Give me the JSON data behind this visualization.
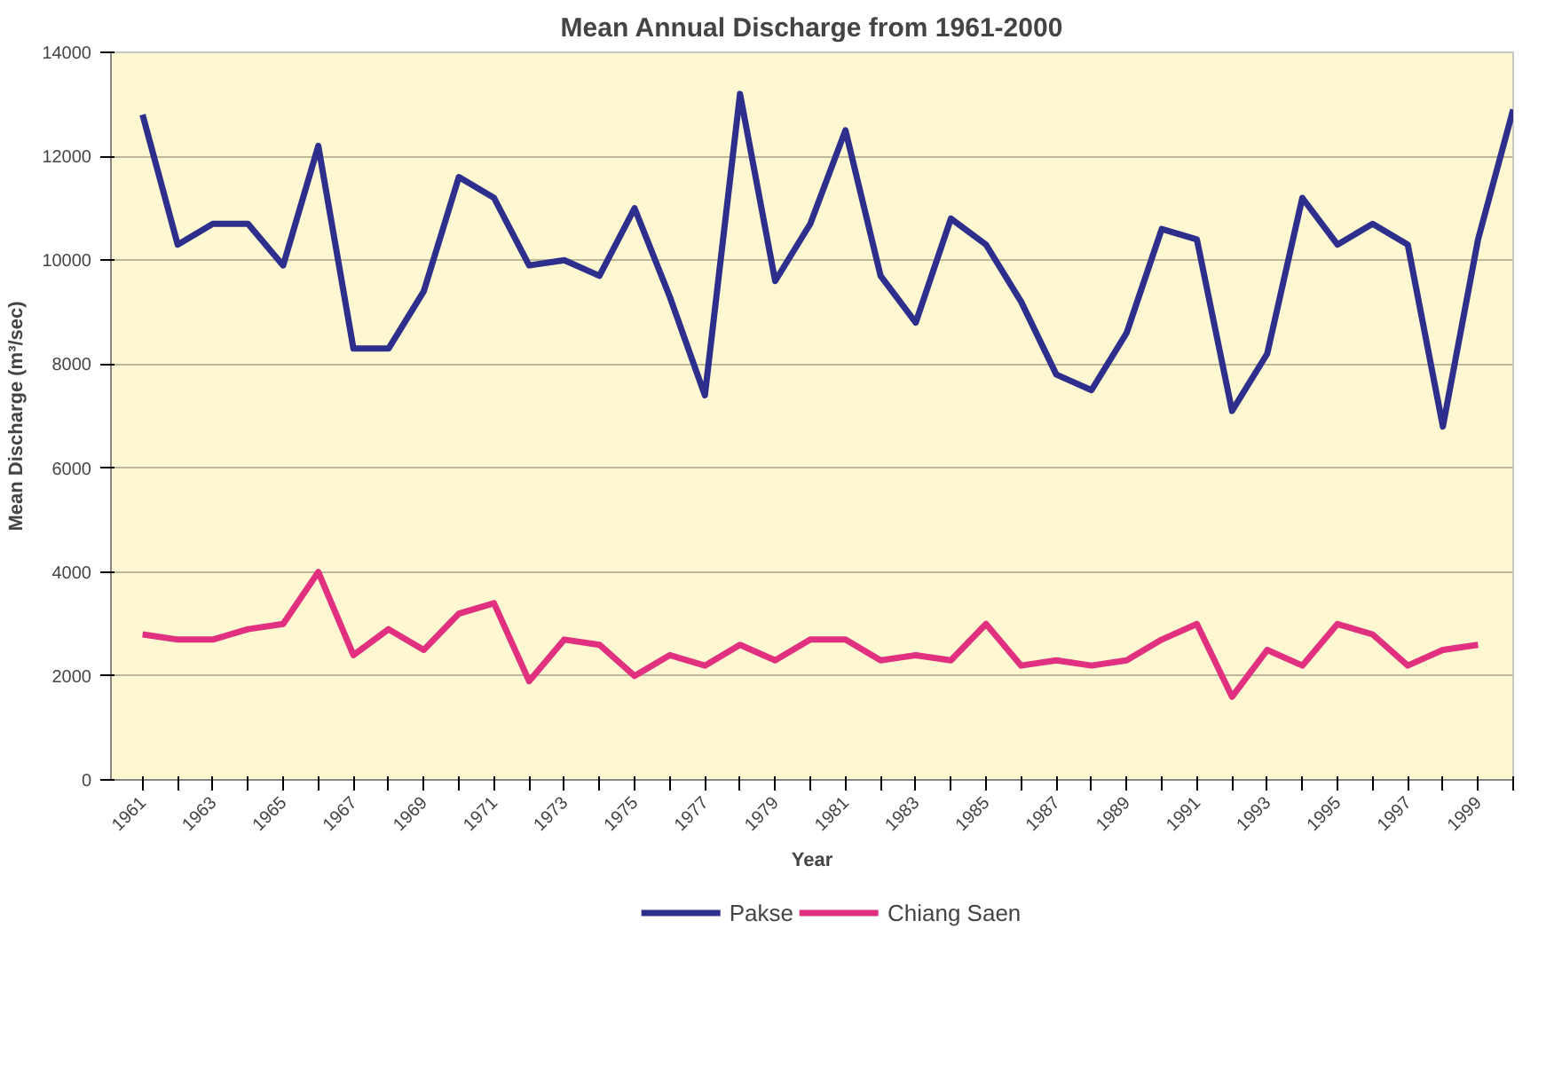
{
  "chart_data": {
    "type": "line",
    "title": "Mean Annual Discharge from 1961-2000",
    "xlabel": "Year",
    "ylabel": "Mean Discharge (m³/sec)",
    "categories": [
      "1961",
      null,
      "1963",
      null,
      "1965",
      null,
      "1967",
      null,
      "1969",
      null,
      "1971",
      null,
      "1973",
      null,
      "1975",
      null,
      "1977",
      null,
      "1979",
      null,
      "1981",
      null,
      "1983",
      null,
      "1985",
      null,
      "1987",
      null,
      "1989",
      null,
      "1991",
      null,
      "1993",
      null,
      "1995",
      null,
      "1997",
      null,
      "1999",
      null
    ],
    "series": [
      {
        "name": "Pakse",
        "color": "#2e2e8c",
        "values": [
          12800,
          10300,
          10700,
          10700,
          9900,
          12200,
          8300,
          8300,
          9400,
          11600,
          11200,
          9900,
          10000,
          9700,
          11000,
          9300,
          7400,
          13200,
          9600,
          10700,
          12500,
          9700,
          8800,
          10800,
          10300,
          9200,
          7800,
          7500,
          8600,
          10600,
          10400,
          7100,
          8200,
          11200,
          10300,
          10700,
          10300,
          6800,
          10400,
          12900
        ]
      },
      {
        "name": "Chiang Saen",
        "color": "#e0307f",
        "values": [
          2800,
          2700,
          2700,
          2900,
          3000,
          4000,
          2400,
          2900,
          2500,
          3200,
          3400,
          1900,
          2700,
          2600,
          2000,
          2400,
          2200,
          2600,
          2300,
          2700,
          2700,
          2300,
          2400,
          2300,
          3000,
          2200,
          2300,
          2200,
          2300,
          2700,
          3000,
          1600,
          2500,
          2200,
          3000,
          2800,
          2200,
          2500,
          2600,
          null
        ]
      }
    ],
    "ylim": [
      0,
      14000
    ],
    "yticks": [
      0,
      2000,
      4000,
      6000,
      8000,
      10000,
      12000,
      14000
    ],
    "grid": "y",
    "legend": "bottom",
    "line_style": "solid",
    "marker": "none"
  }
}
